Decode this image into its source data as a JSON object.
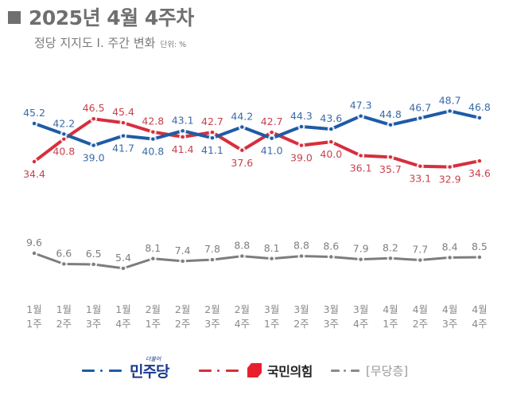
{
  "header": {
    "title": "2025년 4월 4주차",
    "subtitle": "정당 지지도 Ⅰ. 주간 변화",
    "unit": "단위: %"
  },
  "colors": {
    "blue": "#1f5ba6",
    "red": "#d72e3d",
    "gray": "#7d7d7d",
    "label_blue": "#3a6aa8",
    "label_red": "#c8424d",
    "label_gray": "#7f7f7f",
    "axis_text": "#8a8a8a"
  },
  "legend": {
    "democratic_logo_small": "더불어",
    "democratic": "민주당",
    "ppp": "국민의힘",
    "independent": "[무당층]"
  },
  "chart_data": {
    "type": "line",
    "title": "정당 지지도 Ⅰ. 주간 변화",
    "unit": "%",
    "xlabel": "",
    "ylabel": "",
    "grid": false,
    "legend_position": "bottom",
    "categories": [
      [
        "1월",
        "1주"
      ],
      [
        "1월",
        "2주"
      ],
      [
        "1월",
        "3주"
      ],
      [
        "1월",
        "4주"
      ],
      [
        "2월",
        "1주"
      ],
      [
        "2월",
        "2주"
      ],
      [
        "2월",
        "3주"
      ],
      [
        "2월",
        "4주"
      ],
      [
        "3월",
        "1주"
      ],
      [
        "3월",
        "2주"
      ],
      [
        "3월",
        "3주"
      ],
      [
        "3월",
        "4주"
      ],
      [
        "4월",
        "1주"
      ],
      [
        "4월",
        "2주"
      ],
      [
        "4월",
        "3주"
      ],
      [
        "4월",
        "4주"
      ]
    ],
    "series": [
      {
        "name": "민주당",
        "color": "#1f5ba6",
        "values": [
          45.2,
          42.2,
          39.0,
          41.7,
          40.8,
          43.1,
          41.1,
          44.2,
          41.0,
          44.3,
          43.6,
          47.3,
          44.8,
          46.7,
          48.7,
          46.8
        ],
        "labels": [
          "45.2",
          "42.2",
          "39.0",
          "41.7",
          "40.8",
          "43.1",
          "41.1",
          "44.2",
          "41.0",
          "44.3",
          "43.6",
          "47.3",
          "44.8",
          "46.7",
          "48.7",
          "46.8"
        ]
      },
      {
        "name": "국민의힘",
        "color": "#d72e3d",
        "values": [
          34.4,
          40.8,
          46.5,
          45.4,
          42.8,
          41.4,
          42.7,
          37.6,
          42.7,
          39.0,
          40.0,
          36.1,
          35.7,
          33.1,
          32.9,
          34.6
        ],
        "labels": [
          "34.4",
          "40.8",
          "46.5",
          "45.4",
          "42.8",
          "41.4",
          "42.7",
          "37.6",
          "42.7",
          "39.0",
          "40.0",
          "36.1",
          "35.7",
          "33.1",
          "32.9",
          "34.6"
        ]
      },
      {
        "name": "[무당층]",
        "color": "#7d7d7d",
        "values": [
          9.6,
          6.6,
          6.5,
          5.4,
          8.1,
          7.4,
          7.8,
          8.8,
          8.1,
          8.8,
          8.6,
          7.9,
          8.2,
          7.7,
          8.4,
          8.5
        ],
        "labels": [
          "9.6",
          "6.6",
          "6.5",
          "5.4",
          "8.1",
          "7.4",
          "7.8",
          "8.8",
          "8.1",
          "8.8",
          "8.6",
          "7.9",
          "8.2",
          "7.7",
          "8.4",
          "8.5"
        ]
      }
    ]
  }
}
